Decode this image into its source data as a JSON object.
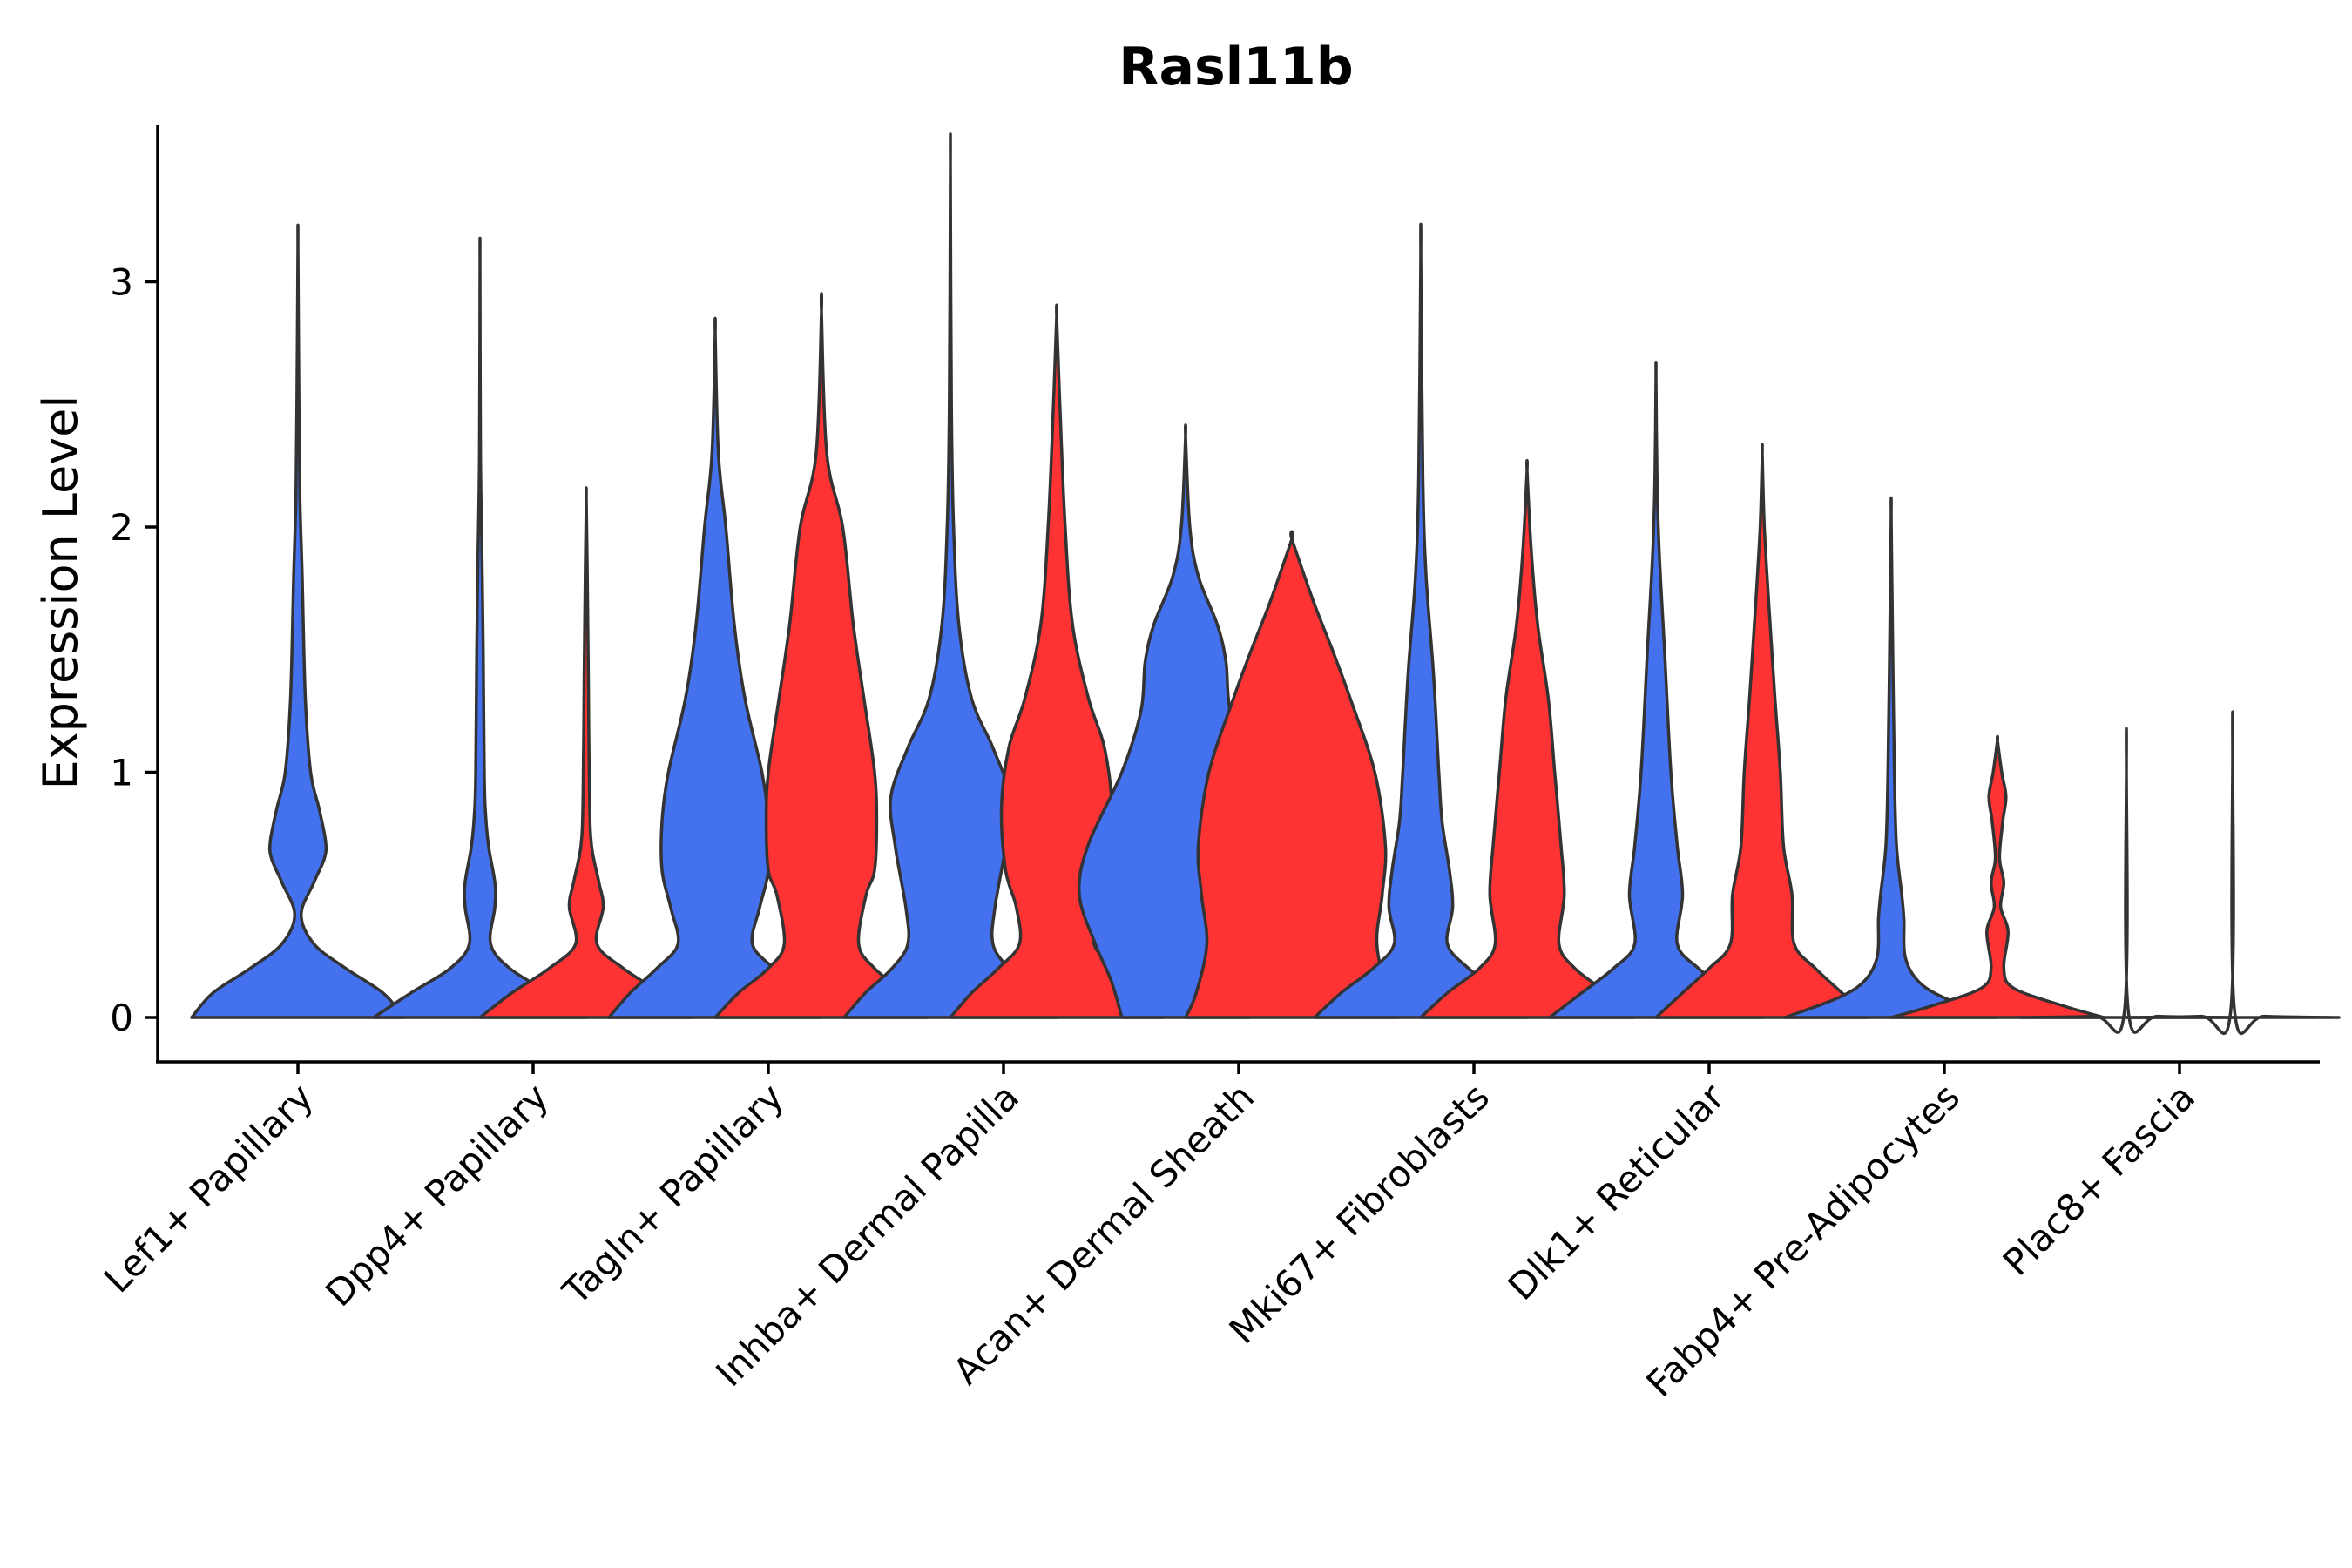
{
  "chart_data": {
    "type": "violin",
    "title": "Rasl11b",
    "xlabel": "",
    "ylabel": "Expression Level",
    "ylim": [
      -0.17,
      3.65
    ],
    "yticks": [
      0,
      1,
      2,
      3
    ],
    "series_colors": {
      "blue": "#4472EE",
      "red": "#FF3333"
    },
    "categories": [
      "Lef1+ Papillary",
      "Dpp4+ Papillary",
      "Tagln+ Papillary",
      "Inhba+ Dermal Papilla",
      "Acan+ Dermal Sheath",
      "Mki67+ Fibroblasts",
      "Dlk1+ Reticular",
      "Fabp4+ Pre-Adipocytes",
      "Plac8+ Fascia"
    ],
    "violins": [
      {
        "category": 0,
        "side": 0,
        "color": "#4472EE",
        "profile": [
          [
            0,
            1.0
          ],
          [
            0.1,
            0.8
          ],
          [
            0.2,
            0.45
          ],
          [
            0.3,
            0.15
          ],
          [
            0.42,
            0.03
          ],
          [
            0.55,
            0.15
          ],
          [
            0.65,
            0.25
          ],
          [
            0.72,
            0.26
          ],
          [
            0.85,
            0.2
          ],
          [
            1.0,
            0.12
          ],
          [
            1.3,
            0.07
          ],
          [
            1.8,
            0.04
          ],
          [
            2.1,
            0.02
          ],
          [
            2.5,
            0.01
          ],
          [
            3.15,
            0
          ]
        ]
      },
      {
        "category": 1,
        "side": -1,
        "color": "#4472EE",
        "profile": [
          [
            0,
            1.0
          ],
          [
            0.1,
            0.65
          ],
          [
            0.2,
            0.28
          ],
          [
            0.3,
            0.1
          ],
          [
            0.45,
            0.14
          ],
          [
            0.55,
            0.14
          ],
          [
            0.7,
            0.08
          ],
          [
            0.85,
            0.05
          ],
          [
            1.0,
            0.04
          ],
          [
            1.5,
            0.03
          ],
          [
            1.85,
            0.02
          ],
          [
            2.3,
            0.005
          ],
          [
            3.08,
            0
          ]
        ]
      },
      {
        "category": 1,
        "side": 1,
        "color": "#FF3333",
        "profile": [
          [
            0,
            1.0
          ],
          [
            0.1,
            0.7
          ],
          [
            0.2,
            0.35
          ],
          [
            0.3,
            0.1
          ],
          [
            0.45,
            0.16
          ],
          [
            0.55,
            0.12
          ],
          [
            0.7,
            0.05
          ],
          [
            0.9,
            0.03
          ],
          [
            1.4,
            0.02
          ],
          [
            1.8,
            0.01
          ],
          [
            2.12,
            0
          ]
        ]
      },
      {
        "category": 2,
        "side": -1,
        "color": "#4472EE",
        "profile": [
          [
            0,
            1.0
          ],
          [
            0.1,
            0.8
          ],
          [
            0.2,
            0.55
          ],
          [
            0.3,
            0.35
          ],
          [
            0.45,
            0.42
          ],
          [
            0.6,
            0.5
          ],
          [
            0.8,
            0.5
          ],
          [
            1.0,
            0.44
          ],
          [
            1.3,
            0.28
          ],
          [
            1.6,
            0.18
          ],
          [
            2.0,
            0.1
          ],
          [
            2.3,
            0.03
          ],
          [
            2.79,
            0
          ]
        ]
      },
      {
        "category": 2,
        "side": 1,
        "color": "#FF3333",
        "profile": [
          [
            0,
            1.0
          ],
          [
            0.1,
            0.78
          ],
          [
            0.2,
            0.5
          ],
          [
            0.3,
            0.35
          ],
          [
            0.5,
            0.42
          ],
          [
            0.6,
            0.5
          ],
          [
            0.8,
            0.52
          ],
          [
            1.0,
            0.5
          ],
          [
            1.3,
            0.4
          ],
          [
            1.6,
            0.3
          ],
          [
            2.0,
            0.2
          ],
          [
            2.3,
            0.05
          ],
          [
            2.88,
            0
          ]
        ]
      },
      {
        "category": 3,
        "side": -1,
        "color": "#4472EE",
        "profile": [
          [
            0,
            1.0
          ],
          [
            0.1,
            0.8
          ],
          [
            0.2,
            0.55
          ],
          [
            0.3,
            0.4
          ],
          [
            0.45,
            0.42
          ],
          [
            0.7,
            0.52
          ],
          [
            0.9,
            0.56
          ],
          [
            1.1,
            0.4
          ],
          [
            1.3,
            0.2
          ],
          [
            1.6,
            0.08
          ],
          [
            2.0,
            0.03
          ],
          [
            2.5,
            0.01
          ],
          [
            3.48,
            0
          ]
        ]
      },
      {
        "category": 3,
        "side": 1,
        "color": "#FF3333",
        "profile": [
          [
            0,
            1.0
          ],
          [
            0.1,
            0.8
          ],
          [
            0.2,
            0.55
          ],
          [
            0.3,
            0.35
          ],
          [
            0.45,
            0.38
          ],
          [
            0.6,
            0.48
          ],
          [
            0.85,
            0.52
          ],
          [
            1.1,
            0.45
          ],
          [
            1.3,
            0.3
          ],
          [
            1.6,
            0.15
          ],
          [
            2.0,
            0.08
          ],
          [
            2.5,
            0.03
          ],
          [
            2.86,
            0
          ]
        ]
      },
      {
        "category": 4,
        "side": -1,
        "color": "#4472EE",
        "profile": [
          [
            0,
            0.6
          ],
          [
            0.15,
            0.7
          ],
          [
            0.3,
            0.85
          ],
          [
            0.5,
            1.0
          ],
          [
            0.7,
            0.92
          ],
          [
            1.0,
            0.6
          ],
          [
            1.25,
            0.42
          ],
          [
            1.45,
            0.38
          ],
          [
            1.6,
            0.3
          ],
          [
            1.8,
            0.12
          ],
          [
            2.0,
            0.04
          ],
          [
            2.37,
            0
          ]
        ]
      },
      {
        "category": 4,
        "side": 1,
        "color": "#FF3333",
        "profile": [
          [
            0,
            1.0
          ],
          [
            0.1,
            0.9
          ],
          [
            0.3,
            0.8
          ],
          [
            0.5,
            0.85
          ],
          [
            0.7,
            0.88
          ],
          [
            1.0,
            0.78
          ],
          [
            1.3,
            0.55
          ],
          [
            1.5,
            0.38
          ],
          [
            1.7,
            0.2
          ],
          [
            1.95,
            0
          ]
        ]
      },
      {
        "category": 5,
        "side": -1,
        "color": "#4472EE",
        "profile": [
          [
            0,
            1.0
          ],
          [
            0.1,
            0.75
          ],
          [
            0.2,
            0.45
          ],
          [
            0.3,
            0.25
          ],
          [
            0.45,
            0.3
          ],
          [
            0.6,
            0.27
          ],
          [
            0.8,
            0.2
          ],
          [
            1.0,
            0.17
          ],
          [
            1.4,
            0.12
          ],
          [
            1.8,
            0.05
          ],
          [
            2.2,
            0.02
          ],
          [
            3.12,
            0
          ]
        ]
      },
      {
        "category": 5,
        "side": 1,
        "color": "#FF3333",
        "profile": [
          [
            0,
            1.0
          ],
          [
            0.1,
            0.75
          ],
          [
            0.2,
            0.45
          ],
          [
            0.3,
            0.3
          ],
          [
            0.5,
            0.35
          ],
          [
            0.7,
            0.32
          ],
          [
            1.0,
            0.26
          ],
          [
            1.3,
            0.2
          ],
          [
            1.6,
            0.1
          ],
          [
            1.9,
            0.04
          ],
          [
            2.23,
            0
          ]
        ]
      },
      {
        "category": 6,
        "side": -1,
        "color": "#4472EE",
        "profile": [
          [
            0,
            1.0
          ],
          [
            0.1,
            0.7
          ],
          [
            0.2,
            0.4
          ],
          [
            0.3,
            0.2
          ],
          [
            0.5,
            0.25
          ],
          [
            0.7,
            0.2
          ],
          [
            1.0,
            0.14
          ],
          [
            1.5,
            0.08
          ],
          [
            1.9,
            0.03
          ],
          [
            2.2,
            0.01
          ],
          [
            2.62,
            0
          ]
        ]
      },
      {
        "category": 6,
        "side": 1,
        "color": "#FF3333",
        "profile": [
          [
            0,
            1.0
          ],
          [
            0.1,
            0.75
          ],
          [
            0.2,
            0.5
          ],
          [
            0.3,
            0.3
          ],
          [
            0.5,
            0.28
          ],
          [
            0.7,
            0.2
          ],
          [
            1.0,
            0.17
          ],
          [
            1.3,
            0.12
          ],
          [
            1.7,
            0.06
          ],
          [
            2.0,
            0.02
          ],
          [
            2.3,
            0
          ]
        ]
      },
      {
        "category": 7,
        "side": -1,
        "color": "#4472EE",
        "profile": [
          [
            0,
            1.0
          ],
          [
            0.08,
            0.5
          ],
          [
            0.15,
            0.25
          ],
          [
            0.25,
            0.13
          ],
          [
            0.4,
            0.12
          ],
          [
            0.5,
            0.1
          ],
          [
            0.7,
            0.05
          ],
          [
            1.0,
            0.03
          ],
          [
            1.5,
            0.015
          ],
          [
            2.05,
            0
          ]
        ]
      },
      {
        "category": 7,
        "side": 1,
        "color": "#FF3333",
        "profile": [
          [
            0,
            1.0
          ],
          [
            0.05,
            0.6
          ],
          [
            0.12,
            0.15
          ],
          [
            0.2,
            0.06
          ],
          [
            0.35,
            0.1
          ],
          [
            0.45,
            0.03
          ],
          [
            0.55,
            0.06
          ],
          [
            0.65,
            0.02
          ],
          [
            0.8,
            0.05
          ],
          [
            0.9,
            0.08
          ],
          [
            1.0,
            0.04
          ],
          [
            1.13,
            0
          ]
        ]
      },
      {
        "category": 8,
        "side": -1,
        "color": "#4472EE",
        "profile": [
          [
            0,
            1.0
          ],
          [
            0.005,
            0.3
          ],
          [
            0.02,
            0.02
          ],
          [
            1.05,
            0
          ]
        ]
      },
      {
        "category": 8,
        "side": 1,
        "color": "#FF3333",
        "profile": [
          [
            0,
            1.0
          ],
          [
            0.005,
            0.3
          ],
          [
            0.02,
            0.02
          ],
          [
            1.11,
            0
          ]
        ]
      }
    ]
  }
}
